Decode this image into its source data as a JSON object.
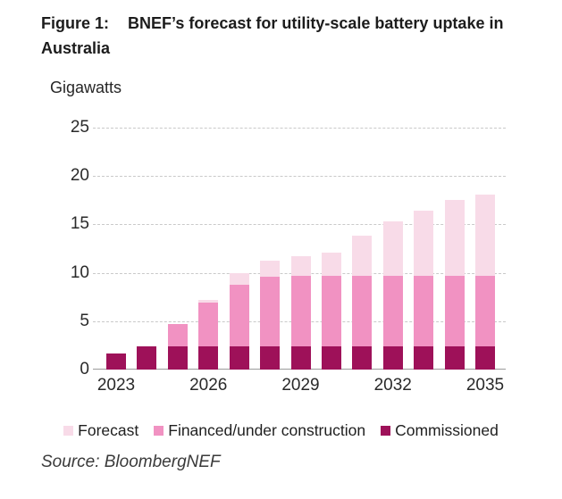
{
  "figure": {
    "label": "Figure 1:"
  },
  "chart_data": {
    "type": "bar",
    "stacked": true,
    "title": "BNEF’s forecast for utility-scale battery uptake in Australia",
    "ylabel": "Gigawatts",
    "xlabel": "",
    "x": [
      2023,
      2024,
      2025,
      2026,
      2027,
      2028,
      2029,
      2030,
      2031,
      2032,
      2033,
      2034,
      2035
    ],
    "x_tick_labels": [
      "2023",
      "2026",
      "2029",
      "2032",
      "2035"
    ],
    "yticks": [
      0,
      5,
      10,
      15,
      20,
      25
    ],
    "ylim": [
      0,
      25
    ],
    "grid": "horizontal-dashed",
    "legend_position": "bottom",
    "legend": [
      "Forecast",
      "Financed/under construction",
      "Commissioned"
    ],
    "series": [
      {
        "name": "Commissioned",
        "color": "#9E1159",
        "values": [
          1.7,
          2.4,
          2.4,
          2.4,
          2.4,
          2.4,
          2.4,
          2.4,
          2.4,
          2.4,
          2.4,
          2.4,
          2.4
        ]
      },
      {
        "name": "Financed/under construction",
        "color": "#F192C2",
        "values": [
          0,
          0,
          2.3,
          4.5,
          6.4,
          7.2,
          7.3,
          7.3,
          7.3,
          7.3,
          7.3,
          7.3,
          7.3
        ]
      },
      {
        "name": "Forecast",
        "color": "#F8DBE8",
        "values": [
          0,
          0,
          0,
          0.3,
          1.2,
          1.7,
          2.0,
          2.4,
          4.1,
          5.6,
          6.7,
          7.8,
          8.4
        ]
      }
    ],
    "totals": [
      1.7,
      2.4,
      4.7,
      7.2,
      10.0,
      11.3,
      11.7,
      12.1,
      13.8,
      15.3,
      16.4,
      17.5,
      18.1
    ]
  },
  "source": "Source: BloombergNEF",
  "colors": {
    "axis_line": "#9B9B9B",
    "gridline": "#C9C9C9",
    "text": "#1C1C1C"
  }
}
